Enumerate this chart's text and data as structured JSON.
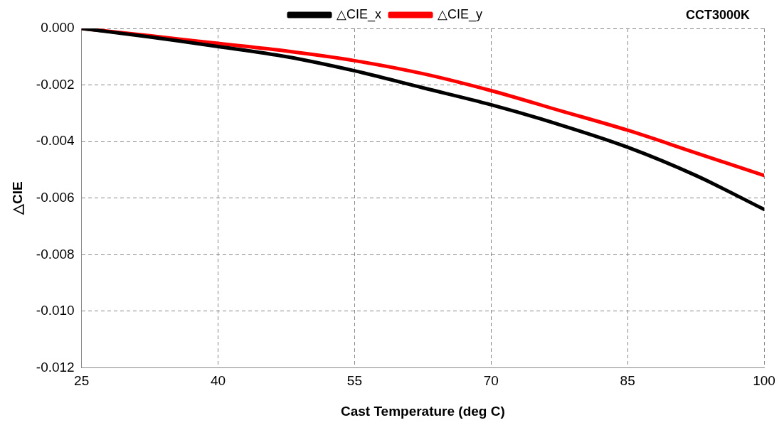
{
  "chart_data": {
    "type": "line",
    "title": "CCT3000K",
    "xlabel": "Cast Temperature (deg C)",
    "ylabel": "△CIE",
    "x": [
      25,
      32.5,
      40,
      47.5,
      55,
      62.5,
      70,
      77.5,
      85,
      92.5,
      100
    ],
    "series": [
      {
        "name": "△CIE_x",
        "color": "#000000",
        "values": [
          0,
          -0.0003,
          -0.00064,
          -0.001,
          -0.0015,
          -0.0021,
          -0.0027,
          -0.0034,
          -0.0042,
          -0.0052,
          -0.0064
        ]
      },
      {
        "name": "△CIE_y",
        "color": "#ff0000",
        "values": [
          0,
          -0.00026,
          -0.00053,
          -0.0008,
          -0.00114,
          -0.0016,
          -0.0022,
          -0.0029,
          -0.0036,
          -0.0044,
          -0.0052
        ]
      }
    ],
    "xlim": [
      25,
      100
    ],
    "xticks": [
      25,
      40,
      55,
      70,
      85,
      100
    ],
    "ylim": [
      -0.012,
      0
    ],
    "yticks": [
      {
        "value": -0.012,
        "label": "-0.012"
      },
      {
        "value": -0.01,
        "label": "-0.010"
      },
      {
        "value": -0.008,
        "label": "-0.008"
      },
      {
        "value": -0.006,
        "label": "-0.006"
      },
      {
        "value": -0.004,
        "label": "-0.004"
      },
      {
        "value": -0.002,
        "label": "-0.002"
      },
      {
        "value": 0,
        "label": "0.000"
      }
    ],
    "grid": true,
    "legend": "top",
    "marker": "none",
    "line_style": "solid"
  }
}
